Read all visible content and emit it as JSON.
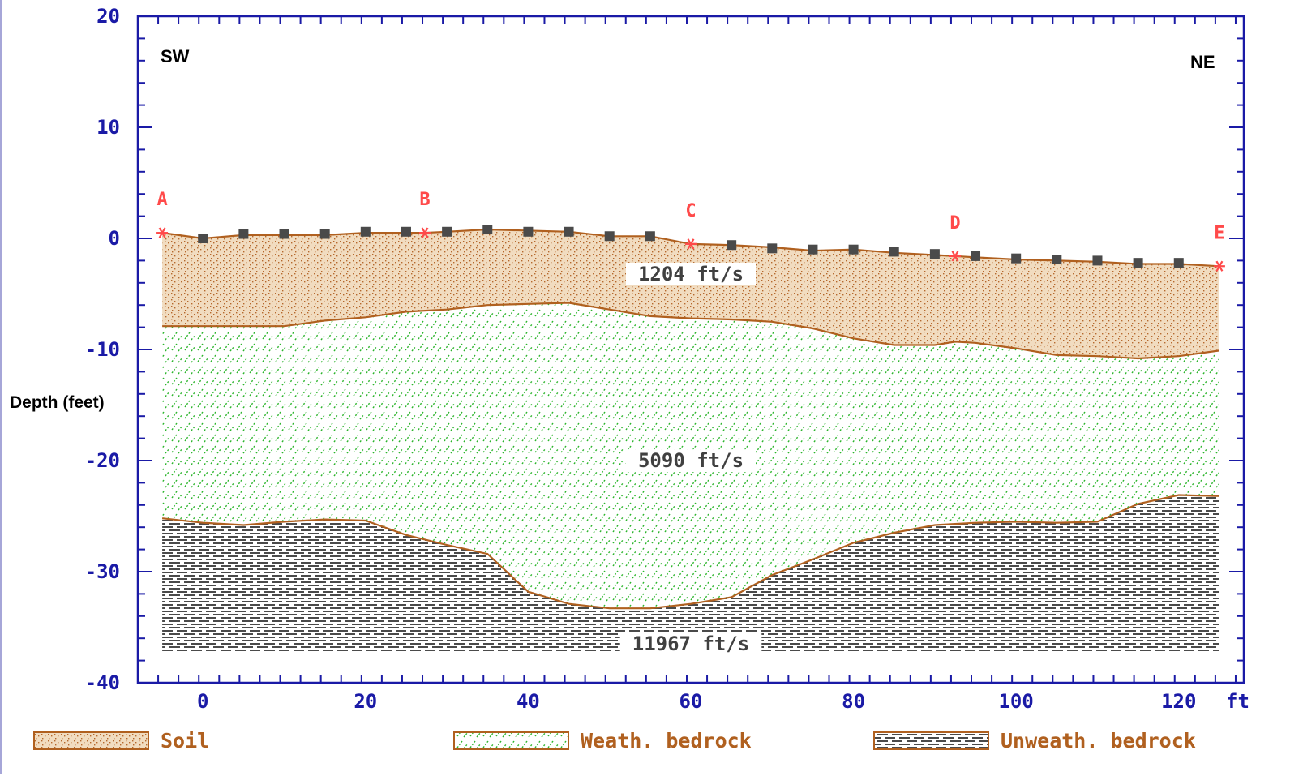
{
  "chart_data": {
    "type": "area",
    "ylabel": "Depth (feet)",
    "x_unit_label": "ft",
    "xlim": [
      -8,
      128
    ],
    "ylim": [
      -40,
      20
    ],
    "x_ticks": [
      0,
      20,
      40,
      60,
      80,
      100,
      120
    ],
    "y_ticks": [
      20,
      10,
      0,
      -10,
      -20,
      -30,
      -40
    ],
    "direction_labels": {
      "left": "SW",
      "right": "NE"
    },
    "surface_points": [
      {
        "name": "A",
        "x": -5,
        "y": 0.5
      },
      {
        "name": "B",
        "x": 27.3,
        "y": 0.5
      },
      {
        "name": "C",
        "x": 60,
        "y": -0.5
      },
      {
        "name": "D",
        "x": 92.5,
        "y": -1.6
      },
      {
        "name": "E",
        "x": 125,
        "y": -2.5
      }
    ],
    "geophones": [
      {
        "x": 0,
        "y": 0
      },
      {
        "x": 5,
        "y": 0.4
      },
      {
        "x": 10,
        "y": 0.4
      },
      {
        "x": 15,
        "y": 0.4
      },
      {
        "x": 20,
        "y": 0.6
      },
      {
        "x": 25,
        "y": 0.6
      },
      {
        "x": 30,
        "y": 0.6
      },
      {
        "x": 35,
        "y": 0.8
      },
      {
        "x": 40,
        "y": 0.6
      },
      {
        "x": 45,
        "y": 0.6
      },
      {
        "x": 50,
        "y": 0.2
      },
      {
        "x": 55,
        "y": 0.2
      },
      {
        "x": 65,
        "y": -0.6
      },
      {
        "x": 70,
        "y": -0.9
      },
      {
        "x": 75,
        "y": -1.0
      },
      {
        "x": 80,
        "y": -1.0
      },
      {
        "x": 85,
        "y": -1.2
      },
      {
        "x": 90,
        "y": -1.4
      },
      {
        "x": 95,
        "y": -1.6
      },
      {
        "x": 100,
        "y": -1.8
      },
      {
        "x": 105,
        "y": -1.9
      },
      {
        "x": 110,
        "y": -2.0
      },
      {
        "x": 115,
        "y": -2.2
      },
      {
        "x": 120,
        "y": -2.2
      }
    ],
    "boundaries": {
      "surface": [
        [
          -5,
          0.5
        ],
        [
          0,
          0
        ],
        [
          5,
          0.3
        ],
        [
          15,
          0.3
        ],
        [
          20,
          0.5
        ],
        [
          25,
          0.5
        ],
        [
          27.3,
          0.5
        ],
        [
          30,
          0.6
        ],
        [
          35,
          0.8
        ],
        [
          45,
          0.6
        ],
        [
          50,
          0.2
        ],
        [
          55,
          0.2
        ],
        [
          60,
          -0.5
        ],
        [
          65,
          -0.6
        ],
        [
          70,
          -0.8
        ],
        [
          75,
          -1.1
        ],
        [
          80,
          -1.0
        ],
        [
          85,
          -1.3
        ],
        [
          90,
          -1.5
        ],
        [
          92.5,
          -1.6
        ],
        [
          95,
          -1.7
        ],
        [
          100,
          -1.9
        ],
        [
          105,
          -2.0
        ],
        [
          110,
          -2.1
        ],
        [
          115,
          -2.3
        ],
        [
          120,
          -2.3
        ],
        [
          125,
          -2.5
        ]
      ],
      "soil_base": [
        [
          -5,
          -7.9
        ],
        [
          10,
          -7.9
        ],
        [
          15,
          -7.4
        ],
        [
          20,
          -7.1
        ],
        [
          25,
          -6.6
        ],
        [
          30,
          -6.4
        ],
        [
          35,
          -6.0
        ],
        [
          40,
          -5.9
        ],
        [
          45,
          -5.8
        ],
        [
          50,
          -6.4
        ],
        [
          55,
          -7.0
        ],
        [
          60,
          -7.2
        ],
        [
          65,
          -7.3
        ],
        [
          70,
          -7.5
        ],
        [
          75,
          -8.1
        ],
        [
          80,
          -9.0
        ],
        [
          85,
          -9.6
        ],
        [
          90,
          -9.6
        ],
        [
          92.5,
          -9.3
        ],
        [
          95,
          -9.4
        ],
        [
          100,
          -9.9
        ],
        [
          105,
          -10.5
        ],
        [
          110,
          -10.6
        ],
        [
          115,
          -10.8
        ],
        [
          120,
          -10.6
        ],
        [
          125,
          -10.1
        ]
      ],
      "weathered_base": [
        [
          -5,
          -25.2
        ],
        [
          0,
          -25.6
        ],
        [
          5,
          -25.8
        ],
        [
          10,
          -25.5
        ],
        [
          15,
          -25.3
        ],
        [
          20,
          -25.4
        ],
        [
          25,
          -26.7
        ],
        [
          30,
          -27.6
        ],
        [
          35,
          -28.4
        ],
        [
          40,
          -31.8
        ],
        [
          45,
          -32.9
        ],
        [
          50,
          -33.3
        ],
        [
          55,
          -33.3
        ],
        [
          60,
          -32.9
        ],
        [
          65,
          -32.3
        ],
        [
          70,
          -30.3
        ],
        [
          75,
          -28.9
        ],
        [
          80,
          -27.4
        ],
        [
          85,
          -26.5
        ],
        [
          90,
          -25.8
        ],
        [
          95,
          -25.6
        ],
        [
          100,
          -25.5
        ],
        [
          105,
          -25.6
        ],
        [
          110,
          -25.5
        ],
        [
          115,
          -23.9
        ],
        [
          120,
          -23.1
        ],
        [
          125,
          -23.2
        ]
      ],
      "section_bottom": -37.3
    },
    "layers": [
      {
        "name": "Soil",
        "velocity": "1204  ft/s",
        "label_pos": [
          60,
          -3.5
        ],
        "fill": "#f1dcc0",
        "dot": "#b5682d"
      },
      {
        "name": "Weath. bedrock",
        "velocity": "5090  ft/s",
        "label_pos": [
          60,
          -20.3
        ],
        "fill": "#ffffff",
        "dot": "#2cb52c"
      },
      {
        "name": "Unweath. bedrock",
        "velocity": "11967  ft/s",
        "label_pos": [
          60,
          -36.8
        ],
        "fill": "#ffffff",
        "dot": "#4a4a4a"
      }
    ],
    "colors": {
      "axis": "#1a1aa6",
      "boundary_line": "#b0601f",
      "point_marker": "#ff4a4a",
      "geophone": "#4a4a4a"
    }
  },
  "legend": [
    {
      "label": "Soil",
      "layer": 0
    },
    {
      "label": "Weath. bedrock",
      "layer": 1
    },
    {
      "label": "Unweath. bedrock",
      "layer": 2
    }
  ]
}
